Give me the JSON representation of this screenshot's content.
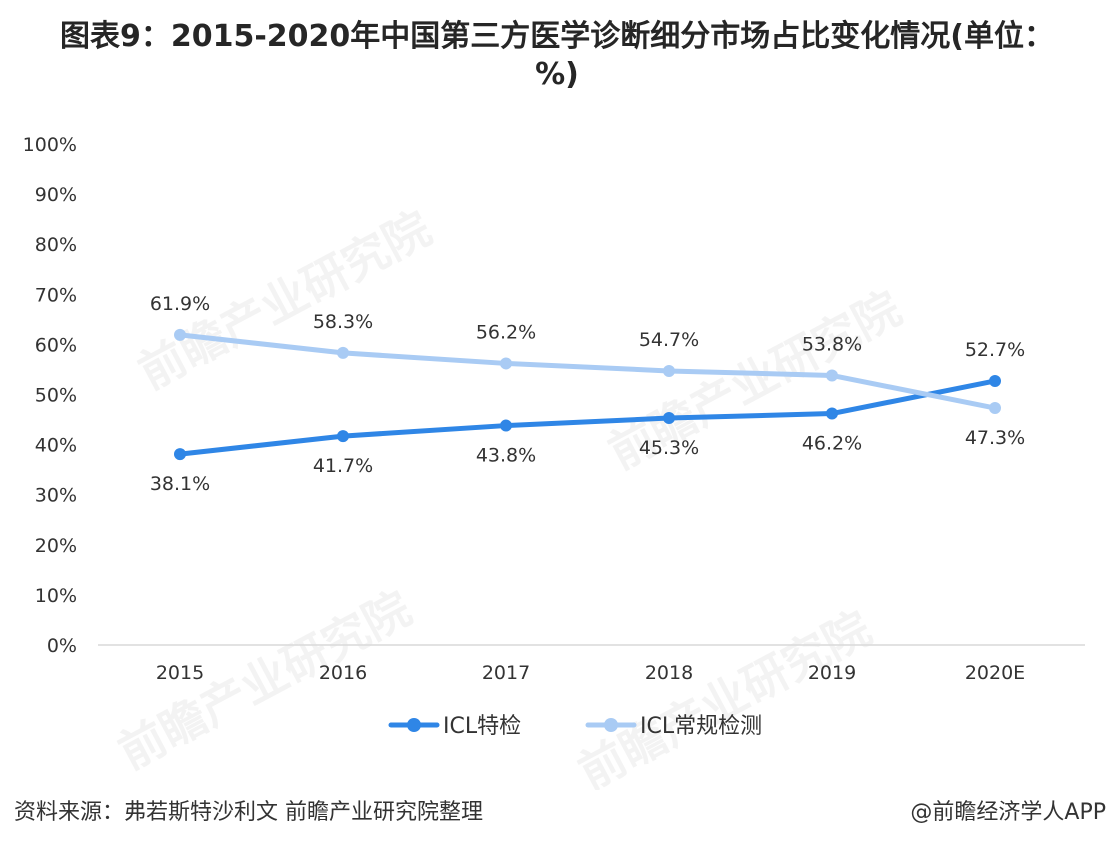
{
  "header": {
    "title": "图表9：2015-2020年中国第三方医学诊断细分市场占比变化情况(单位：%)"
  },
  "chart_data": {
    "type": "line",
    "title": "",
    "xlabel": "",
    "ylabel": "",
    "categories": [
      "2015",
      "2016",
      "2017",
      "2018",
      "2019",
      "2020E"
    ],
    "ylim": [
      0,
      100
    ],
    "yticks": [
      "0%",
      "10%",
      "20%",
      "30%",
      "40%",
      "50%",
      "60%",
      "70%",
      "80%",
      "90%",
      "100%"
    ],
    "grid": false,
    "legend_placement": "bottom-center",
    "series": [
      {
        "name": "ICL特检",
        "color": "#2f86e6",
        "values": [
          38.1,
          41.7,
          43.8,
          45.3,
          46.2,
          52.7
        ],
        "labels": [
          "38.1%",
          "41.7%",
          "43.8%",
          "45.3%",
          "46.2%",
          "52.7%"
        ]
      },
      {
        "name": "ICL常规检测",
        "color": "#a9cbf4",
        "values": [
          61.9,
          58.3,
          56.2,
          54.7,
          53.8,
          47.3
        ],
        "labels": [
          "61.9%",
          "58.3%",
          "56.2%",
          "54.7%",
          "53.8%",
          "47.3%"
        ]
      }
    ]
  },
  "watermark": {
    "text": "前瞻产业研究院"
  },
  "footer": {
    "source": "资料来源：弗若斯特沙利文 前瞻产业研究院整理",
    "brand": "@前瞻经济学人APP"
  }
}
